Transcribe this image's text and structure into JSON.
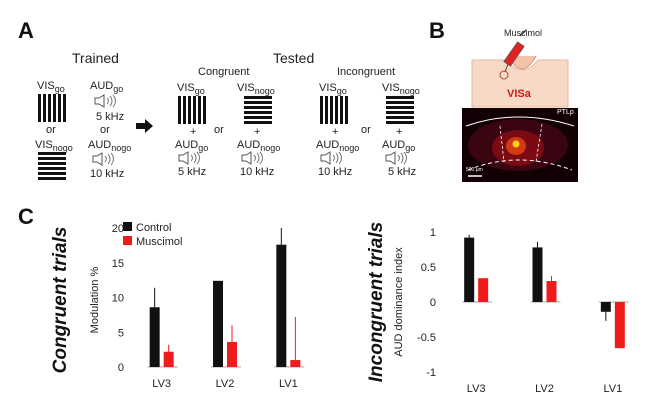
{
  "panel_a": {
    "letter": "A",
    "trained": {
      "title": "Trained",
      "vis_go": "VIS",
      "vis_go_sub": "go",
      "aud_go": "AUD",
      "aud_go_sub": "go",
      "aud_go_freq": "5 kHz",
      "or_left": "or",
      "or_right": "or",
      "vis_nogo": "VIS",
      "vis_nogo_sub": "nogo",
      "aud_nogo": "AUD",
      "aud_nogo_sub": "nogo",
      "aud_nogo_freq": "10 kHz"
    },
    "tested": {
      "title": "Tested",
      "congruent": {
        "title": "Congruent",
        "col1": {
          "vis": "VIS",
          "vis_sub": "go",
          "plus": "+",
          "aud": "AUD",
          "aud_sub": "go",
          "freq": "5 kHz"
        },
        "or": "or",
        "col2": {
          "vis": "VIS",
          "vis_sub": "nogo",
          "plus": "+",
          "aud": "AUD",
          "aud_sub": "nogo",
          "freq": "10 kHz"
        }
      },
      "incongruent": {
        "title": "Incongruent",
        "col1": {
          "vis": "VIS",
          "vis_sub": "go",
          "plus": "+",
          "aud": "AUD",
          "aud_sub": "nogo",
          "freq": "10 kHz"
        },
        "or": "or",
        "col2": {
          "vis": "VIS",
          "vis_sub": "nogo",
          "plus": "+",
          "aud": "AUD",
          "aud_sub": "go",
          "freq": "5 kHz"
        }
      }
    }
  },
  "panel_b": {
    "letter": "B",
    "drug": "Muscimol",
    "area": "VISa",
    "region": "PTLp",
    "scale": "500 µm"
  },
  "panel_c": {
    "letter": "C"
  },
  "chart_data": [
    {
      "type": "bar",
      "ylabel_italic": "Congruent trials",
      "ylabel": "Modulation %",
      "categories": [
        "LV3",
        "LV2",
        "LV1"
      ],
      "ylim": [
        0,
        20
      ],
      "yticks": [
        "0",
        "5",
        "10",
        "15",
        "20"
      ],
      "legend_position": "top-left",
      "series": [
        {
          "name": "Control",
          "color": "#111111",
          "values": [
            8.6,
            12.4,
            17.6
          ],
          "err": [
            2.8,
            0,
            2.4
          ]
        },
        {
          "name": "Muscimol",
          "color": "#ee1c1c",
          "values": [
            2.2,
            3.6,
            1.0
          ],
          "err": [
            1.0,
            2.4,
            6.2
          ]
        }
      ]
    },
    {
      "type": "bar",
      "ylabel_italic": "Incongruent trials",
      "ylabel": "AUD dominance index",
      "categories": [
        "LV3",
        "LV2",
        "LV1"
      ],
      "ylim": [
        -1,
        1
      ],
      "yticks": [
        "1",
        "0.5",
        "0",
        "-0.5",
        "-1"
      ],
      "series": [
        {
          "name": "Control",
          "color": "#111111",
          "values": [
            0.92,
            0.78,
            -0.14
          ],
          "err": [
            0.04,
            0.08,
            0.13
          ]
        },
        {
          "name": "Muscimol",
          "color": "#ee1c1c",
          "values": [
            0.34,
            0.3,
            -0.66
          ],
          "err": [
            0.0,
            0.07,
            0.0
          ]
        }
      ]
    }
  ]
}
